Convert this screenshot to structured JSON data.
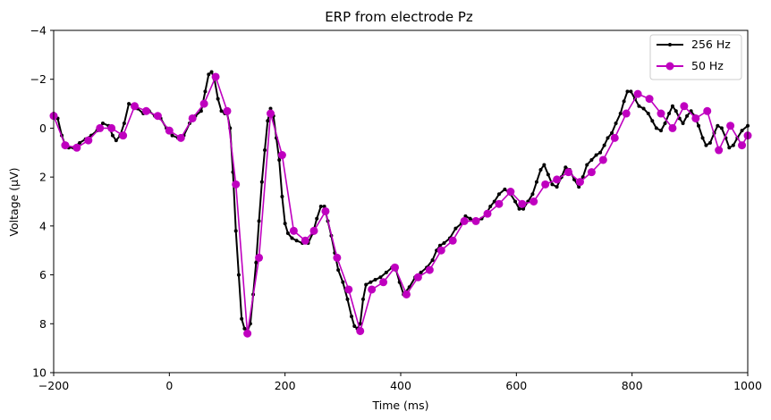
{
  "chart_data": {
    "type": "line",
    "title": "ERP from electrode Pz",
    "xlabel": "Time (ms)",
    "ylabel": "Voltage (µV)",
    "xlim": [
      -200,
      1000
    ],
    "ylim_inverted": [
      -4,
      10
    ],
    "y_axis_inverted": true,
    "grid": false,
    "legend_position": "top-right",
    "x_ticks": [
      -200,
      0,
      200,
      400,
      600,
      800,
      1000
    ],
    "x_tick_labels": [
      "−200",
      "0",
      "200",
      "400",
      "600",
      "800",
      "1000"
    ],
    "y_ticks": [
      -4,
      -2,
      0,
      2,
      4,
      6,
      8,
      10
    ],
    "y_tick_labels": [
      "−4",
      "−2",
      "0",
      "2",
      "4",
      "6",
      "8",
      "10"
    ],
    "series": [
      {
        "name": "256 Hz",
        "color": "#000000",
        "marker": "small-dot",
        "points": [
          [
            -200,
            -0.6
          ],
          [
            -193,
            -0.4
          ],
          [
            -186,
            0.3
          ],
          [
            -180,
            0.7
          ],
          [
            -174,
            0.8
          ],
          [
            -166,
            0.8
          ],
          [
            -155,
            0.6
          ],
          [
            -145,
            0.45
          ],
          [
            -135,
            0.3
          ],
          [
            -125,
            0.1
          ],
          [
            -115,
            -0.2
          ],
          [
            -105,
            -0.1
          ],
          [
            -98,
            0.3
          ],
          [
            -92,
            0.5
          ],
          [
            -85,
            0.3
          ],
          [
            -78,
            -0.2
          ],
          [
            -70,
            -1.0
          ],
          [
            -62,
            -0.9
          ],
          [
            -55,
            -0.8
          ],
          [
            -45,
            -0.6
          ],
          [
            -35,
            -0.7
          ],
          [
            -25,
            -0.5
          ],
          [
            -15,
            -0.4
          ],
          [
            -5,
            0.0
          ],
          [
            5,
            0.3
          ],
          [
            15,
            0.4
          ],
          [
            25,
            0.3
          ],
          [
            35,
            -0.2
          ],
          [
            45,
            -0.5
          ],
          [
            55,
            -0.7
          ],
          [
            62,
            -1.5
          ],
          [
            68,
            -2.2
          ],
          [
            73,
            -2.3
          ],
          [
            78,
            -2.0
          ],
          [
            84,
            -1.2
          ],
          [
            90,
            -0.7
          ],
          [
            96,
            -0.6
          ],
          [
            100,
            -0.6
          ],
          [
            105,
            0.0
          ],
          [
            110,
            1.8
          ],
          [
            115,
            4.2
          ],
          [
            120,
            6.0
          ],
          [
            125,
            7.8
          ],
          [
            130,
            8.2
          ],
          [
            135,
            8.3
          ],
          [
            140,
            8.0
          ],
          [
            145,
            6.8
          ],
          [
            150,
            5.5
          ],
          [
            155,
            3.8
          ],
          [
            160,
            2.2
          ],
          [
            165,
            0.9
          ],
          [
            170,
            -0.3
          ],
          [
            175,
            -0.8
          ],
          [
            180,
            -0.5
          ],
          [
            185,
            0.4
          ],
          [
            190,
            1.3
          ],
          [
            195,
            2.8
          ],
          [
            200,
            3.9
          ],
          [
            205,
            4.3
          ],
          [
            212,
            4.5
          ],
          [
            220,
            4.6
          ],
          [
            230,
            4.7
          ],
          [
            240,
            4.7
          ],
          [
            248,
            4.3
          ],
          [
            255,
            3.7
          ],
          [
            262,
            3.2
          ],
          [
            268,
            3.2
          ],
          [
            274,
            3.8
          ],
          [
            280,
            4.4
          ],
          [
            286,
            5.1
          ],
          [
            292,
            5.8
          ],
          [
            300,
            6.3
          ],
          [
            308,
            7.0
          ],
          [
            315,
            7.7
          ],
          [
            320,
            8.1
          ],
          [
            325,
            8.2
          ],
          [
            330,
            8.0
          ],
          [
            335,
            7.0
          ],
          [
            340,
            6.4
          ],
          [
            348,
            6.3
          ],
          [
            356,
            6.2
          ],
          [
            365,
            6.1
          ],
          [
            375,
            5.9
          ],
          [
            385,
            5.7
          ],
          [
            392,
            5.8
          ],
          [
            398,
            6.3
          ],
          [
            405,
            6.8
          ],
          [
            415,
            6.5
          ],
          [
            425,
            6.1
          ],
          [
            435,
            5.9
          ],
          [
            445,
            5.7
          ],
          [
            455,
            5.4
          ],
          [
            462,
            5.0
          ],
          [
            468,
            4.8
          ],
          [
            475,
            4.7
          ],
          [
            485,
            4.5
          ],
          [
            495,
            4.1
          ],
          [
            505,
            3.9
          ],
          [
            512,
            3.6
          ],
          [
            520,
            3.7
          ],
          [
            530,
            3.8
          ],
          [
            540,
            3.7
          ],
          [
            548,
            3.5
          ],
          [
            555,
            3.2
          ],
          [
            562,
            3.0
          ],
          [
            570,
            2.7
          ],
          [
            580,
            2.5
          ],
          [
            590,
            2.7
          ],
          [
            598,
            3.0
          ],
          [
            605,
            3.3
          ],
          [
            612,
            3.3
          ],
          [
            620,
            3.0
          ],
          [
            628,
            2.7
          ],
          [
            635,
            2.2
          ],
          [
            642,
            1.7
          ],
          [
            648,
            1.5
          ],
          [
            655,
            1.9
          ],
          [
            662,
            2.3
          ],
          [
            670,
            2.4
          ],
          [
            678,
            2.0
          ],
          [
            685,
            1.6
          ],
          [
            692,
            1.7
          ],
          [
            700,
            2.1
          ],
          [
            708,
            2.4
          ],
          [
            715,
            2.0
          ],
          [
            722,
            1.5
          ],
          [
            730,
            1.3
          ],
          [
            738,
            1.1
          ],
          [
            745,
            1.0
          ],
          [
            752,
            0.7
          ],
          [
            758,
            0.4
          ],
          [
            765,
            0.2
          ],
          [
            772,
            -0.2
          ],
          [
            780,
            -0.6
          ],
          [
            786,
            -1.1
          ],
          [
            792,
            -1.5
          ],
          [
            798,
            -1.5
          ],
          [
            805,
            -1.2
          ],
          [
            812,
            -0.9
          ],
          [
            820,
            -0.8
          ],
          [
            828,
            -0.6
          ],
          [
            835,
            -0.3
          ],
          [
            842,
            0.0
          ],
          [
            850,
            0.1
          ],
          [
            857,
            -0.2
          ],
          [
            864,
            -0.6
          ],
          [
            870,
            -0.9
          ],
          [
            876,
            -0.7
          ],
          [
            882,
            -0.4
          ],
          [
            888,
            -0.2
          ],
          [
            895,
            -0.5
          ],
          [
            902,
            -0.7
          ],
          [
            908,
            -0.5
          ],
          [
            915,
            -0.1
          ],
          [
            922,
            0.4
          ],
          [
            928,
            0.7
          ],
          [
            935,
            0.6
          ],
          [
            942,
            0.2
          ],
          [
            948,
            -0.1
          ],
          [
            955,
            0.0
          ],
          [
            962,
            0.4
          ],
          [
            968,
            0.8
          ],
          [
            975,
            0.7
          ],
          [
            982,
            0.4
          ],
          [
            990,
            0.1
          ],
          [
            1000,
            -0.1
          ]
        ]
      },
      {
        "name": "50 Hz",
        "color": "#bf00bf",
        "marker": "large-dot",
        "points": [
          [
            -200,
            -0.5
          ],
          [
            -180,
            0.7
          ],
          [
            -160,
            0.8
          ],
          [
            -140,
            0.5
          ],
          [
            -120,
            0.0
          ],
          [
            -100,
            0.0
          ],
          [
            -80,
            0.3
          ],
          [
            -60,
            -0.9
          ],
          [
            -40,
            -0.7
          ],
          [
            -20,
            -0.5
          ],
          [
            0,
            0.1
          ],
          [
            20,
            0.4
          ],
          [
            40,
            -0.4
          ],
          [
            60,
            -1.0
          ],
          [
            80,
            -2.1
          ],
          [
            100,
            -0.7
          ],
          [
            115,
            2.3
          ],
          [
            135,
            8.4
          ],
          [
            155,
            5.3
          ],
          [
            175,
            -0.6
          ],
          [
            195,
            1.1
          ],
          [
            215,
            4.2
          ],
          [
            235,
            4.6
          ],
          [
            250,
            4.2
          ],
          [
            270,
            3.4
          ],
          [
            290,
            5.3
          ],
          [
            310,
            6.6
          ],
          [
            330,
            8.3
          ],
          [
            350,
            6.6
          ],
          [
            370,
            6.3
          ],
          [
            390,
            5.7
          ],
          [
            410,
            6.8
          ],
          [
            430,
            6.1
          ],
          [
            450,
            5.8
          ],
          [
            470,
            5.0
          ],
          [
            490,
            4.6
          ],
          [
            510,
            3.8
          ],
          [
            530,
            3.8
          ],
          [
            550,
            3.5
          ],
          [
            570,
            3.1
          ],
          [
            590,
            2.6
          ],
          [
            610,
            3.1
          ],
          [
            630,
            3.0
          ],
          [
            650,
            2.3
          ],
          [
            670,
            2.1
          ],
          [
            690,
            1.8
          ],
          [
            710,
            2.2
          ],
          [
            730,
            1.8
          ],
          [
            750,
            1.3
          ],
          [
            770,
            0.4
          ],
          [
            790,
            -0.6
          ],
          [
            810,
            -1.4
          ],
          [
            830,
            -1.2
          ],
          [
            850,
            -0.6
          ],
          [
            870,
            0.0
          ],
          [
            890,
            -0.9
          ],
          [
            910,
            -0.4
          ],
          [
            930,
            -0.7
          ],
          [
            950,
            0.9
          ],
          [
            970,
            -0.1
          ],
          [
            990,
            0.7
          ],
          [
            1000,
            0.3
          ]
        ]
      }
    ]
  }
}
